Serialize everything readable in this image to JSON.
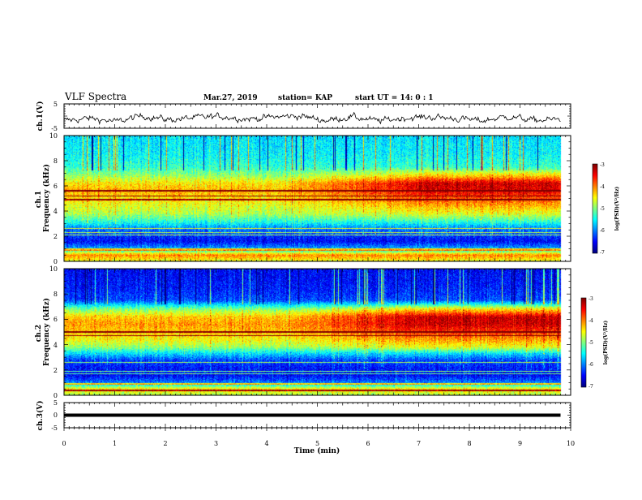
{
  "header": {
    "title": "VLF Spectra",
    "date": "Mar.27, 2019",
    "station": "station= KAP",
    "start": "start  UT =   14: 0  : 1"
  },
  "chart_data": [
    {
      "type": "line",
      "name": "ch1-voltage",
      "ylabel": "ch.1(V)",
      "ylim": [
        -5,
        5
      ],
      "yticks": [
        "5",
        "-5"
      ],
      "xlim": [
        0,
        10
      ],
      "mean": -0.5,
      "amplitude": 2.2,
      "segments": [
        -1.4,
        -0.4,
        -1.8,
        0.6,
        -1.0,
        -0.2,
        0.4,
        -0.7,
        0.1,
        0.6,
        -1.3,
        0.2,
        -1.5,
        -0.3,
        0.1,
        -0.5,
        -1.4,
        0.3,
        -1.3,
        -0.8
      ]
    },
    {
      "type": "heatmap",
      "name": "ch1-spectrogram",
      "ylabel": "ch.1\nFrequency (kHz)",
      "xlim": [
        0,
        10
      ],
      "ylim": [
        0,
        10
      ],
      "yticks": [
        "0",
        "2",
        "4",
        "6",
        "8",
        "10"
      ],
      "colorbar": {
        "label": "log(PSD)(V²/Hz)",
        "ticks": [
          "-3",
          "-4",
          "-5",
          "-6",
          "-7"
        ],
        "range": [
          -7,
          -3
        ]
      },
      "profile_early": [
        [
          0,
          -4.6
        ],
        [
          0.5,
          -4.0
        ],
        [
          1.0,
          -5.8
        ],
        [
          1.6,
          -6.5
        ],
        [
          2.0,
          -6.3
        ],
        [
          2.6,
          -6.0
        ],
        [
          3.1,
          -5.4
        ],
        [
          3.8,
          -4.8
        ],
        [
          4.4,
          -4.6
        ],
        [
          5.0,
          -4.4
        ],
        [
          5.6,
          -4.2
        ],
        [
          6.2,
          -4.4
        ],
        [
          6.8,
          -4.9
        ],
        [
          7.5,
          -5.3
        ],
        [
          8.5,
          -5.5
        ],
        [
          10,
          -5.6
        ]
      ],
      "profile_late": [
        [
          0,
          -4.6
        ],
        [
          0.5,
          -4.0
        ],
        [
          1.0,
          -5.8
        ],
        [
          1.6,
          -6.5
        ],
        [
          2.0,
          -6.3
        ],
        [
          2.6,
          -6.0
        ],
        [
          3.1,
          -5.4
        ],
        [
          3.8,
          -4.6
        ],
        [
          4.4,
          -4.2
        ],
        [
          5.0,
          -3.8
        ],
        [
          5.6,
          -3.4
        ],
        [
          6.2,
          -3.3
        ],
        [
          6.8,
          -4.3
        ],
        [
          7.5,
          -5.3
        ],
        [
          8.5,
          -5.5
        ],
        [
          10,
          -5.6
        ]
      ],
      "transition": [
        4.2,
        7.2
      ],
      "lines_khz": [
        0.9,
        2.1,
        2.3,
        2.6,
        4.9,
        5.2,
        5.6,
        1.0
      ]
    },
    {
      "type": "heatmap",
      "name": "ch2-spectrogram",
      "ylabel": "ch.2\nFrequency (kHz)",
      "xlim": [
        0,
        10
      ],
      "ylim": [
        0,
        10
      ],
      "yticks": [
        "0",
        "2",
        "4",
        "6",
        "8",
        "10"
      ],
      "colorbar": {
        "label": "log(PSD)(V²/Hz)",
        "ticks": [
          "-3",
          "-4",
          "-5",
          "-6",
          "-7"
        ],
        "range": [
          -7,
          -3
        ]
      },
      "profile_early": [
        [
          0,
          -4.8
        ],
        [
          0.5,
          -4.4
        ],
        [
          1.0,
          -6.0
        ],
        [
          1.6,
          -6.5
        ],
        [
          2.2,
          -6.4
        ],
        [
          2.8,
          -6.2
        ],
        [
          3.3,
          -5.6
        ],
        [
          3.8,
          -4.9
        ],
        [
          4.4,
          -4.5
        ],
        [
          5.0,
          -4.3
        ],
        [
          5.6,
          -4.1
        ],
        [
          6.2,
          -4.3
        ],
        [
          6.8,
          -5.0
        ],
        [
          7.5,
          -6.2
        ],
        [
          8.5,
          -6.4
        ],
        [
          10,
          -6.5
        ]
      ],
      "profile_late": [
        [
          0,
          -4.8
        ],
        [
          0.5,
          -4.4
        ],
        [
          1.0,
          -6.0
        ],
        [
          1.6,
          -6.5
        ],
        [
          2.2,
          -6.4
        ],
        [
          2.8,
          -6.2
        ],
        [
          3.3,
          -5.6
        ],
        [
          3.8,
          -4.6
        ],
        [
          4.4,
          -4.1
        ],
        [
          5.0,
          -3.7
        ],
        [
          5.6,
          -3.3
        ],
        [
          6.2,
          -3.3
        ],
        [
          6.8,
          -4.4
        ],
        [
          7.5,
          -6.2
        ],
        [
          8.5,
          -6.4
        ],
        [
          10,
          -6.5
        ]
      ],
      "transition": [
        4.2,
        7.0
      ],
      "lines_khz": [
        0.4,
        0.9,
        1.7,
        1.9,
        2.6,
        4.7,
        5.0
      ]
    },
    {
      "type": "line",
      "name": "ch3-voltage",
      "ylabel": "ch.3(V)",
      "ylim": [
        -5,
        5
      ],
      "yticks": [
        "5",
        "0",
        "-5"
      ],
      "xlim": [
        0,
        10
      ],
      "xlabel": "Time (min)",
      "xticks": [
        "0",
        "1",
        "2",
        "3",
        "4",
        "5",
        "6",
        "7",
        "8",
        "9",
        "10"
      ],
      "value": 0,
      "trace_end": 9.8
    }
  ]
}
